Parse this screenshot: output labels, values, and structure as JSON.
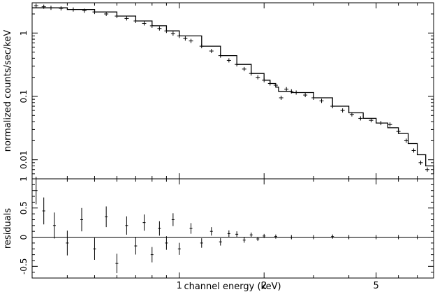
{
  "chart_data": [
    {
      "type": "scatter",
      "panel": "spectrum",
      "title": "",
      "xlabel": "channel energy (keV)",
      "ylabel": "normalized counts/sec/keV",
      "x_scale": "log",
      "y_scale": "log",
      "xlim": [
        0.3,
        8.0
      ],
      "ylim": [
        0.005,
        3.0
      ],
      "yticks": [
        {
          "value": 0.01,
          "label": "0.01"
        },
        {
          "value": 0.1,
          "label": "0.1"
        },
        {
          "value": 1,
          "label": "1"
        }
      ],
      "series": [
        {
          "style": "crosses",
          "x": [
            0.31,
            0.33,
            0.35,
            0.38,
            0.42,
            0.46,
            0.5,
            0.55,
            0.6,
            0.65,
            0.7,
            0.75,
            0.8,
            0.85,
            0.9,
            0.95,
            1.0,
            1.05,
            1.1,
            1.2,
            1.3,
            1.4,
            1.5,
            1.6,
            1.7,
            1.8,
            1.9,
            2.0,
            2.1,
            2.2,
            2.3,
            2.4,
            2.5,
            2.6,
            2.8,
            3.0,
            3.2,
            3.5,
            3.8,
            4.1,
            4.4,
            4.8,
            5.2,
            5.6,
            6.0,
            6.4,
            6.8,
            7.2,
            7.6
          ],
          "y": [
            2.7,
            2.6,
            2.5,
            2.45,
            2.35,
            2.25,
            2.15,
            2.0,
            1.85,
            1.7,
            1.55,
            1.42,
            1.3,
            1.18,
            1.08,
            0.98,
            0.9,
            0.82,
            0.75,
            0.62,
            0.52,
            0.44,
            0.37,
            0.32,
            0.27,
            0.23,
            0.2,
            0.18,
            0.16,
            0.15,
            0.095,
            0.13,
            0.12,
            0.115,
            0.105,
            0.095,
            0.085,
            0.07,
            0.06,
            0.052,
            0.045,
            0.042,
            0.038,
            0.036,
            0.028,
            0.02,
            0.014,
            0.009,
            0.007
          ]
        }
      ],
      "model": {
        "style": "step-line",
        "x": [
          0.3,
          0.4,
          0.5,
          0.6,
          0.7,
          0.8,
          0.9,
          1.0,
          1.2,
          1.4,
          1.6,
          1.8,
          2.0,
          2.1,
          2.2,
          2.25,
          2.5,
          3.0,
          3.5,
          4.0,
          4.5,
          5.0,
          5.5,
          6.0,
          6.5,
          7.0,
          7.5,
          8.0
        ],
        "y": [
          2.5,
          2.35,
          2.15,
          1.85,
          1.55,
          1.3,
          1.08,
          0.9,
          0.62,
          0.44,
          0.32,
          0.23,
          0.18,
          0.16,
          0.14,
          0.12,
          0.115,
          0.095,
          0.07,
          0.055,
          0.045,
          0.038,
          0.032,
          0.026,
          0.018,
          0.012,
          0.008,
          0.006
        ]
      }
    },
    {
      "type": "scatter",
      "panel": "residuals",
      "title": "",
      "xlabel": "channel energy (keV)",
      "ylabel": "residuals",
      "x_scale": "log",
      "xlim": [
        0.3,
        8.0
      ],
      "ylim": [
        -0.7,
        1.0
      ],
      "yticks": [
        {
          "value": -0.5,
          "label": "-0.5"
        },
        {
          "value": 0,
          "label": "0"
        },
        {
          "value": 0.5,
          "label": "0.5"
        },
        {
          "value": 1,
          "label": "1"
        }
      ],
      "xticks": [
        {
          "value": 1,
          "label": "1"
        },
        {
          "value": 2,
          "label": "2"
        },
        {
          "value": 5,
          "label": "5"
        }
      ],
      "reference_line": 0,
      "series": [
        {
          "style": "crosses",
          "x": [
            0.31,
            0.33,
            0.36,
            0.4,
            0.45,
            0.5,
            0.55,
            0.6,
            0.65,
            0.7,
            0.75,
            0.8,
            0.85,
            0.9,
            0.95,
            1.0,
            1.1,
            1.2,
            1.3,
            1.4,
            1.5,
            1.6,
            1.7,
            1.8,
            1.9,
            2.0,
            2.2,
            2.5,
            3.0,
            3.5,
            4.0,
            5.0,
            6.0,
            7.0
          ],
          "y": [
            0.8,
            0.45,
            0.2,
            -0.1,
            0.3,
            -0.2,
            0.35,
            -0.45,
            0.2,
            -0.15,
            0.25,
            -0.3,
            0.15,
            -0.1,
            0.3,
            -0.2,
            0.15,
            -0.1,
            0.1,
            -0.08,
            0.06,
            0.05,
            -0.05,
            0.04,
            -0.03,
            0.02,
            0.01,
            0.0,
            0.0,
            0.01,
            0.0,
            0.0,
            0.0,
            0.0
          ]
        }
      ]
    }
  ]
}
